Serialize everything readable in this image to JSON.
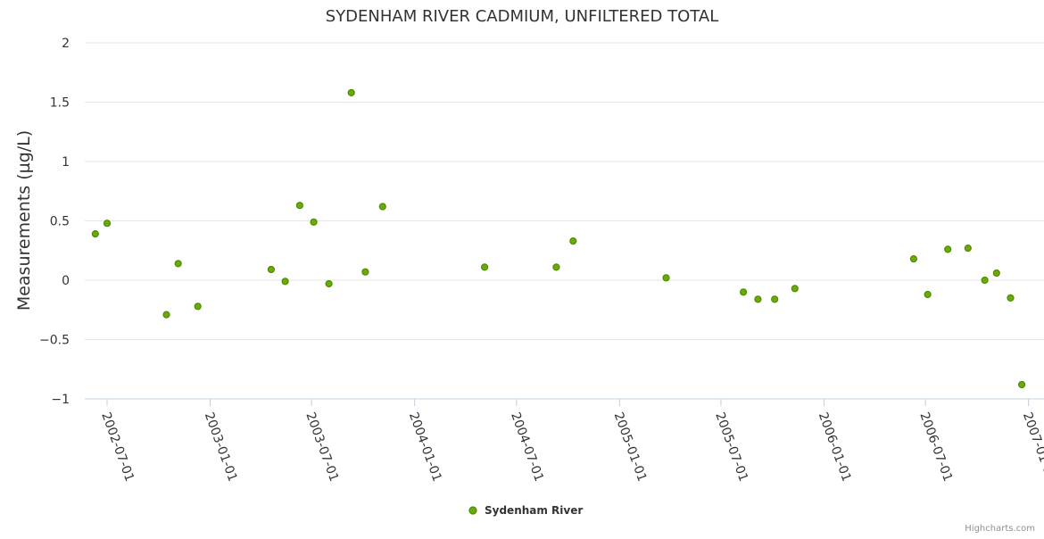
{
  "chart_data": {
    "type": "scatter",
    "title": "SYDENHAM RIVER CADMIUM, UNFILTERED TOTAL",
    "ylabel": "Measurements (µg/L)",
    "xlabel": "",
    "ylim": [
      -1,
      2
    ],
    "yticks": [
      2,
      1.5,
      1,
      0.5,
      0,
      -0.5,
      -1
    ],
    "ytick_labels": [
      "2",
      "1.5",
      "1",
      "0.5",
      "0",
      "−0.5",
      "−1"
    ],
    "xlim": [
      "2002-06-01",
      "2006-12-31"
    ],
    "xticks": [
      "2002-07-01",
      "2003-01-01",
      "2003-07-01",
      "2004-01-01",
      "2004-07-01",
      "2005-01-01",
      "2005-07-01",
      "2006-01-01",
      "2006-07-01",
      "2007-01-01"
    ],
    "grid": true,
    "legend": {
      "position": "bottom-center"
    },
    "colors": {
      "marker_fill": "#6aab04",
      "marker_stroke": "#4f8a0a"
    },
    "series": [
      {
        "name": "Sydenham River",
        "points": [
          {
            "x": "2002-06-10",
            "y": 0.39
          },
          {
            "x": "2002-07-01",
            "y": 0.48
          },
          {
            "x": "2002-10-15",
            "y": -0.29
          },
          {
            "x": "2002-11-05",
            "y": 0.14
          },
          {
            "x": "2002-12-10",
            "y": -0.22
          },
          {
            "x": "2003-04-20",
            "y": 0.09
          },
          {
            "x": "2003-05-15",
            "y": -0.01
          },
          {
            "x": "2003-06-10",
            "y": 0.63
          },
          {
            "x": "2003-07-05",
            "y": 0.49
          },
          {
            "x": "2003-08-01",
            "y": -0.03
          },
          {
            "x": "2003-09-10",
            "y": 1.58
          },
          {
            "x": "2003-10-05",
            "y": 0.07
          },
          {
            "x": "2003-11-05",
            "y": 0.62
          },
          {
            "x": "2004-05-05",
            "y": 0.11
          },
          {
            "x": "2004-09-10",
            "y": 0.11
          },
          {
            "x": "2004-10-10",
            "y": 0.33
          },
          {
            "x": "2005-03-25",
            "y": 0.02
          },
          {
            "x": "2005-08-10",
            "y": -0.1
          },
          {
            "x": "2005-09-05",
            "y": -0.16
          },
          {
            "x": "2005-10-05",
            "y": -0.16
          },
          {
            "x": "2005-11-10",
            "y": -0.07
          },
          {
            "x": "2006-06-10",
            "y": 0.18
          },
          {
            "x": "2006-07-05",
            "y": -0.12
          },
          {
            "x": "2006-08-10",
            "y": 0.26
          },
          {
            "x": "2006-09-15",
            "y": 0.27
          },
          {
            "x": "2006-10-15",
            "y": 0.0
          },
          {
            "x": "2006-11-05",
            "y": 0.06
          },
          {
            "x": "2006-11-30",
            "y": -0.15
          },
          {
            "x": "2006-12-20",
            "y": -0.88
          }
        ]
      }
    ]
  },
  "credits": "Highcharts.com"
}
